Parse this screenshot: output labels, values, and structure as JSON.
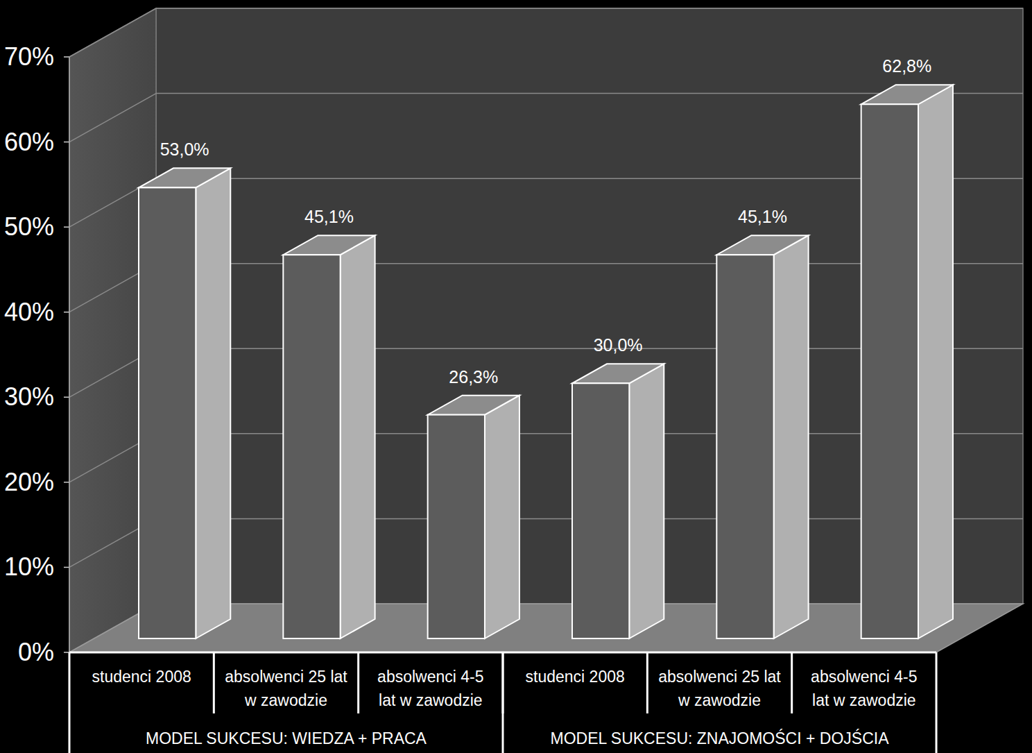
{
  "chart_data": {
    "type": "bar",
    "categories": [
      "studenci 2008",
      "absolwenci 25 lat w zawodzie",
      "absolwenci 4-5 lat w zawodzie",
      "studenci 2008",
      "absolwenci 25 lat w zawodzie",
      "absolwenci 4-5 lat w zawodzie"
    ],
    "category_groups": [
      {
        "label": "MODEL SUKCESU: WIEDZA + PRACA",
        "count": 3
      },
      {
        "label": "MODEL SUKCESU: ZNAJOMOŚCI + DOJŚCIA",
        "count": 3
      }
    ],
    "values": [
      53.0,
      45.1,
      26.3,
      30.0,
      45.1,
      62.8
    ],
    "value_labels": [
      "53,0%",
      "45,1%",
      "26,3%",
      "30,0%",
      "45,1%",
      "62,8%"
    ],
    "color": "#5c5c5c",
    "ylim": [
      0,
      70
    ],
    "yticks": [
      {
        "value": 0,
        "label": "0%"
      },
      {
        "value": 10,
        "label": "10%"
      },
      {
        "value": 20,
        "label": "20%"
      },
      {
        "value": 30,
        "label": "30%"
      },
      {
        "value": 40,
        "label": "40%"
      },
      {
        "value": 50,
        "label": "50%"
      },
      {
        "value": 60,
        "label": "60%"
      },
      {
        "value": 70,
        "label": "70%"
      }
    ],
    "grid": true,
    "data_labels": true
  }
}
